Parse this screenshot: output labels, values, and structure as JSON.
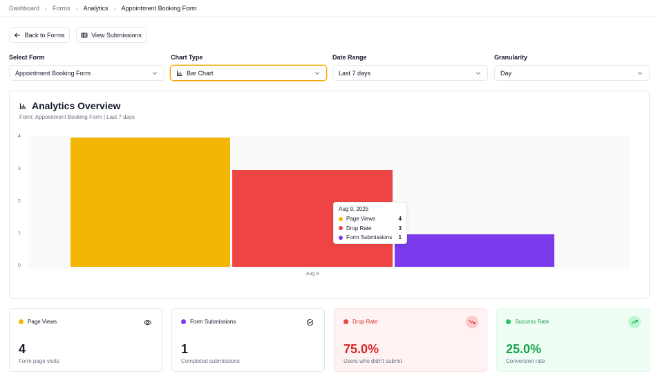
{
  "breadcrumb": [
    "Dashboard",
    "Forms",
    "Analytics",
    "Appointment Booking Form"
  ],
  "actions": {
    "back_label": "Back to Forms",
    "submissions_label": "View Submissions"
  },
  "filters": {
    "form": {
      "label": "Select Form",
      "value": "Appointment Booking Form"
    },
    "chart_type": {
      "label": "Chart Type",
      "value": "Bar Chart"
    },
    "date_range": {
      "label": "Date Range",
      "value": "Last 7 days"
    },
    "granularity": {
      "label": "Granularity",
      "value": "Day"
    }
  },
  "overview": {
    "title": "Analytics Overview",
    "subtitle": "Form: Appointment Booking Form | Last 7 days"
  },
  "chart_data": {
    "type": "bar",
    "categories": [
      "Aug 9"
    ],
    "series": [
      {
        "name": "Page Views",
        "values": [
          4
        ],
        "color": "#f2b705"
      },
      {
        "name": "Drop Rate",
        "values": [
          3
        ],
        "color": "#ef4444"
      },
      {
        "name": "Form Submissions",
        "values": [
          1
        ],
        "color": "#7c3aed"
      }
    ],
    "y_ticks": [
      "0",
      "1",
      "2",
      "3",
      "4"
    ],
    "ylim": [
      0,
      4
    ],
    "tooltip": {
      "title": "Aug 9, 2025",
      "rows": [
        {
          "name": "Page Views",
          "value": "4"
        },
        {
          "name": "Drop Rate",
          "value": "3"
        },
        {
          "name": "Form Submissions",
          "value": "1"
        }
      ]
    }
  },
  "stats": [
    {
      "label": "Page Views",
      "value": "4",
      "desc": "Form page visits",
      "color": "#f2b705",
      "icon": "eye-icon"
    },
    {
      "label": "Form Submissions",
      "value": "1",
      "desc": "Completed submissions",
      "color": "#7c3aed",
      "icon": "check-circle-icon"
    },
    {
      "label": "Drop Rate",
      "value": "75.0%",
      "desc": "Users who didn't submit",
      "color": "#ef4444",
      "icon": "trending-down-icon"
    },
    {
      "label": "Success Rate",
      "value": "25.0%",
      "desc": "Conversion rate",
      "color": "#22c55e",
      "icon": "trending-up-icon"
    }
  ]
}
